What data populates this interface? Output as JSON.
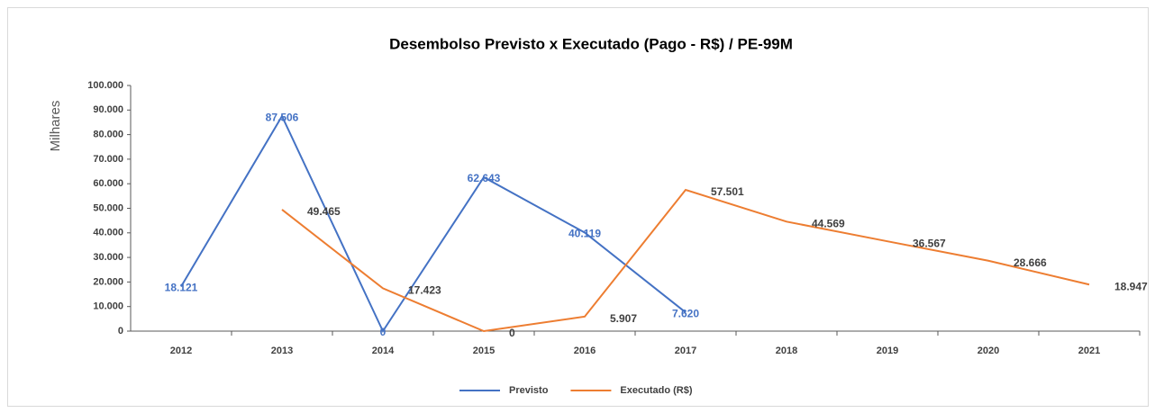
{
  "chart_data": {
    "type": "line",
    "title": "Desembolso Previsto x Executado (Pago - R$) / PE-99M",
    "y_label": "Milhares",
    "categories": [
      "2012",
      "2013",
      "2014",
      "2015",
      "2016",
      "2017",
      "2018",
      "2019",
      "2020",
      "2021"
    ],
    "series": [
      {
        "name": "Previsto",
        "color": "#4472c4",
        "values": [
          18121,
          87506,
          0,
          62643,
          40119,
          7620,
          null,
          null,
          null,
          null
        ],
        "value_labels": [
          "18.121",
          "87.506",
          "0",
          "62.643",
          "40.119",
          "7.620",
          null,
          null,
          null,
          null
        ]
      },
      {
        "name": "Executado (R$)",
        "color": "#ed7d31",
        "values": [
          null,
          49465,
          17423,
          0,
          5907,
          57501,
          44569,
          36567,
          28666,
          18947
        ],
        "value_labels": [
          null,
          "49.465",
          "17.423",
          "0",
          "5.907",
          "57.501",
          "44.569",
          "36.567",
          "28.666",
          "18.947"
        ]
      }
    ],
    "ylim": [
      0,
      100000
    ],
    "yticks": [
      0,
      {
        "value": 10000,
        "label": "10.000"
      },
      {
        "value": 20000,
        "label": "20.000"
      },
      {
        "value": 30000,
        "label": "30.000"
      },
      {
        "value": 40000,
        "label": "40.000"
      },
      {
        "value": 50000,
        "label": "50.000"
      },
      {
        "value": 60000,
        "label": "60.000"
      },
      {
        "value": 70000,
        "label": "70.000"
      },
      {
        "value": 80000,
        "label": "80.000"
      },
      {
        "value": 90000,
        "label": "90.000"
      },
      {
        "value": 100000,
        "label": "100.000"
      }
    ],
    "legend": "bottom"
  }
}
